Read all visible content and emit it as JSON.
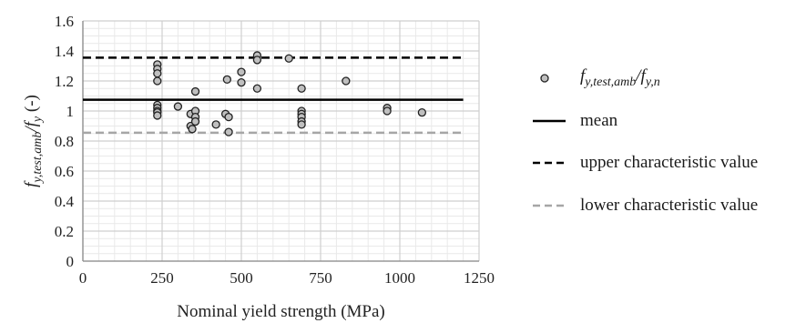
{
  "chart_data": {
    "type": "scatter",
    "xlabel": "Nominal yield strength (MPa)",
    "ylabel_parts": [
      "f",
      "y,test,amb",
      "/f",
      "y",
      " (-)"
    ],
    "xlim": [
      0,
      1250
    ],
    "ylim": [
      0,
      1.6
    ],
    "x_ticks": [
      "0",
      "250",
      "500",
      "750",
      "1000",
      "1250"
    ],
    "y_ticks": [
      "0",
      "0.2",
      "0.4",
      "0.6",
      "0.8",
      "1",
      "1.2",
      "1.4",
      "1.6"
    ],
    "grid": true,
    "series": [
      {
        "name": "f_y,test,amb/f_y,n",
        "legend_parts": [
          "f",
          "y,test,amb",
          "/f",
          "y,n"
        ],
        "kind": "scatter",
        "marker_color": "#bfbfbf",
        "points": [
          [
            235,
            1.31
          ],
          [
            235,
            1.28
          ],
          [
            235,
            1.25
          ],
          [
            235,
            1.2
          ],
          [
            235,
            1.04
          ],
          [
            235,
            1.02
          ],
          [
            235,
            1.0
          ],
          [
            235,
            0.99
          ],
          [
            235,
            0.97
          ],
          [
            300,
            1.03
          ],
          [
            340,
            0.98
          ],
          [
            340,
            0.9
          ],
          [
            345,
            0.88
          ],
          [
            355,
            1.13
          ],
          [
            355,
            1.0
          ],
          [
            355,
            0.96
          ],
          [
            355,
            0.93
          ],
          [
            420,
            0.91
          ],
          [
            450,
            0.98
          ],
          [
            455,
            1.21
          ],
          [
            460,
            0.96
          ],
          [
            460,
            0.86
          ],
          [
            500,
            1.26
          ],
          [
            500,
            1.19
          ],
          [
            550,
            1.37
          ],
          [
            550,
            1.34
          ],
          [
            550,
            1.15
          ],
          [
            650,
            1.35
          ],
          [
            690,
            1.15
          ],
          [
            690,
            1.0
          ],
          [
            690,
            0.98
          ],
          [
            690,
            0.96
          ],
          [
            690,
            0.93
          ],
          [
            690,
            0.91
          ],
          [
            830,
            1.2
          ],
          [
            960,
            1.02
          ],
          [
            960,
            1.0
          ],
          [
            1070,
            0.99
          ]
        ]
      },
      {
        "name": "mean",
        "kind": "hline",
        "y": 1.075,
        "x_range": [
          0,
          1200
        ],
        "color": "#000000",
        "dash": "solid"
      },
      {
        "name": "upper characteristic value",
        "kind": "hline",
        "y": 1.355,
        "x_range": [
          0,
          1200
        ],
        "color": "#000000",
        "dash": "dashed"
      },
      {
        "name": "lower characteristic value",
        "kind": "hline",
        "y": 0.855,
        "x_range": [
          0,
          1200
        ],
        "color": "#a6a6a6",
        "dash": "dashed"
      }
    ]
  }
}
